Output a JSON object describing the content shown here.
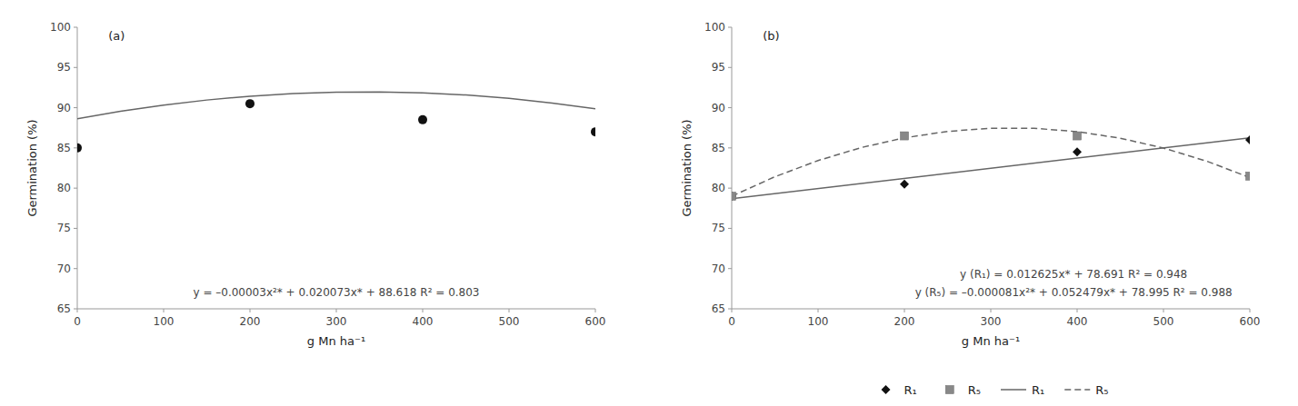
{
  "chart_data": [
    {
      "type": "scatter",
      "title": "(a)",
      "x_label": "g Mn ha⁻¹",
      "y_label": "Germination (%)",
      "xlim": [
        0,
        600
      ],
      "xticks": [
        0,
        100,
        200,
        300,
        400,
        500,
        600
      ],
      "ylim": [
        65,
        100
      ],
      "yticks": [
        65,
        70,
        75,
        80,
        85,
        90,
        95,
        100
      ],
      "grid": false,
      "annotations": [
        "y = –0.00003x²* + 0.020073x* + 88.618  R² = 0.803"
      ],
      "series": [
        {
          "type": "scatter",
          "marker": "circle",
          "color": "#111111",
          "x": [
            0,
            200,
            400,
            600
          ],
          "values": [
            85,
            90.5,
            88.5,
            87
          ]
        },
        {
          "type": "line",
          "line_style": "solid",
          "color": "#666666",
          "x": [
            0,
            50,
            100,
            150,
            200,
            250,
            300,
            350,
            400,
            450,
            500,
            550,
            600
          ],
          "values": [
            88.618,
            89.54665,
            90.3253,
            90.95395,
            91.4326,
            91.76125,
            91.9399,
            91.96855,
            91.8472,
            91.57585,
            91.1545,
            90.58315,
            89.8618
          ]
        }
      ]
    },
    {
      "type": "scatter",
      "title": "(b)",
      "x_label": "g Mn ha⁻¹",
      "y_label": "Germination (%)",
      "xlim": [
        0,
        600
      ],
      "xticks": [
        0,
        100,
        200,
        300,
        400,
        500,
        600
      ],
      "ylim": [
        65,
        100
      ],
      "yticks": [
        65,
        70,
        75,
        80,
        85,
        90,
        95,
        100
      ],
      "grid": false,
      "legend": "bottom",
      "annotations": [
        "y (R₁) = 0.012625x* + 78.691  R² = 0.948",
        "y (R₅) = –0.000081x²* + 0.052479x* + 78.995  R² = 0.988"
      ],
      "series": [
        {
          "name": "R₁",
          "type": "scatter",
          "marker": "diamond",
          "color": "#111111",
          "x": [
            0,
            200,
            400,
            600
          ],
          "values": [
            79,
            80.5,
            84.5,
            86
          ]
        },
        {
          "name": "R₅",
          "type": "scatter",
          "marker": "square",
          "color": "#888888",
          "x": [
            0,
            200,
            400,
            600
          ],
          "values": [
            79,
            86.5,
            86.5,
            81.5
          ]
        },
        {
          "name": "R₁",
          "type": "line",
          "line_style": "solid",
          "color": "#666666",
          "x": [
            0,
            600
          ],
          "values": [
            78.691,
            86.266
          ]
        },
        {
          "name": "R₅",
          "type": "line",
          "line_style": "dashed",
          "color": "#666666",
          "x": [
            0,
            50,
            100,
            150,
            200,
            250,
            300,
            350,
            400,
            450,
            500,
            550,
            600
          ],
          "values": [
            78.995,
            81.41645,
            83.4329,
            85.04435,
            86.2508,
            87.05225,
            87.4487,
            87.44015,
            87.0266,
            86.20805,
            84.9845,
            83.35595,
            81.3224
          ]
        }
      ]
    }
  ]
}
